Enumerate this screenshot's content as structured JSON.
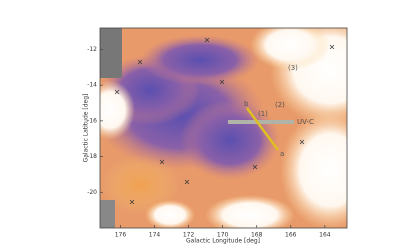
{
  "chart_data": {
    "type": "map",
    "x_label": "Galactic Longitude [deg]",
    "y_label": "Galactic Latitude [deg]",
    "xlim": [
      177.2,
      162.7
    ],
    "ylim": [
      -22,
      -10.8
    ],
    "xticks": [
      176,
      174,
      172,
      170,
      168,
      166,
      164
    ],
    "yticks": [
      -12,
      -14,
      -16,
      -18,
      -20
    ],
    "annotations": [
      "b",
      "(1)",
      "(2)",
      "(3)",
      "UV-C",
      "a"
    ]
  }
}
